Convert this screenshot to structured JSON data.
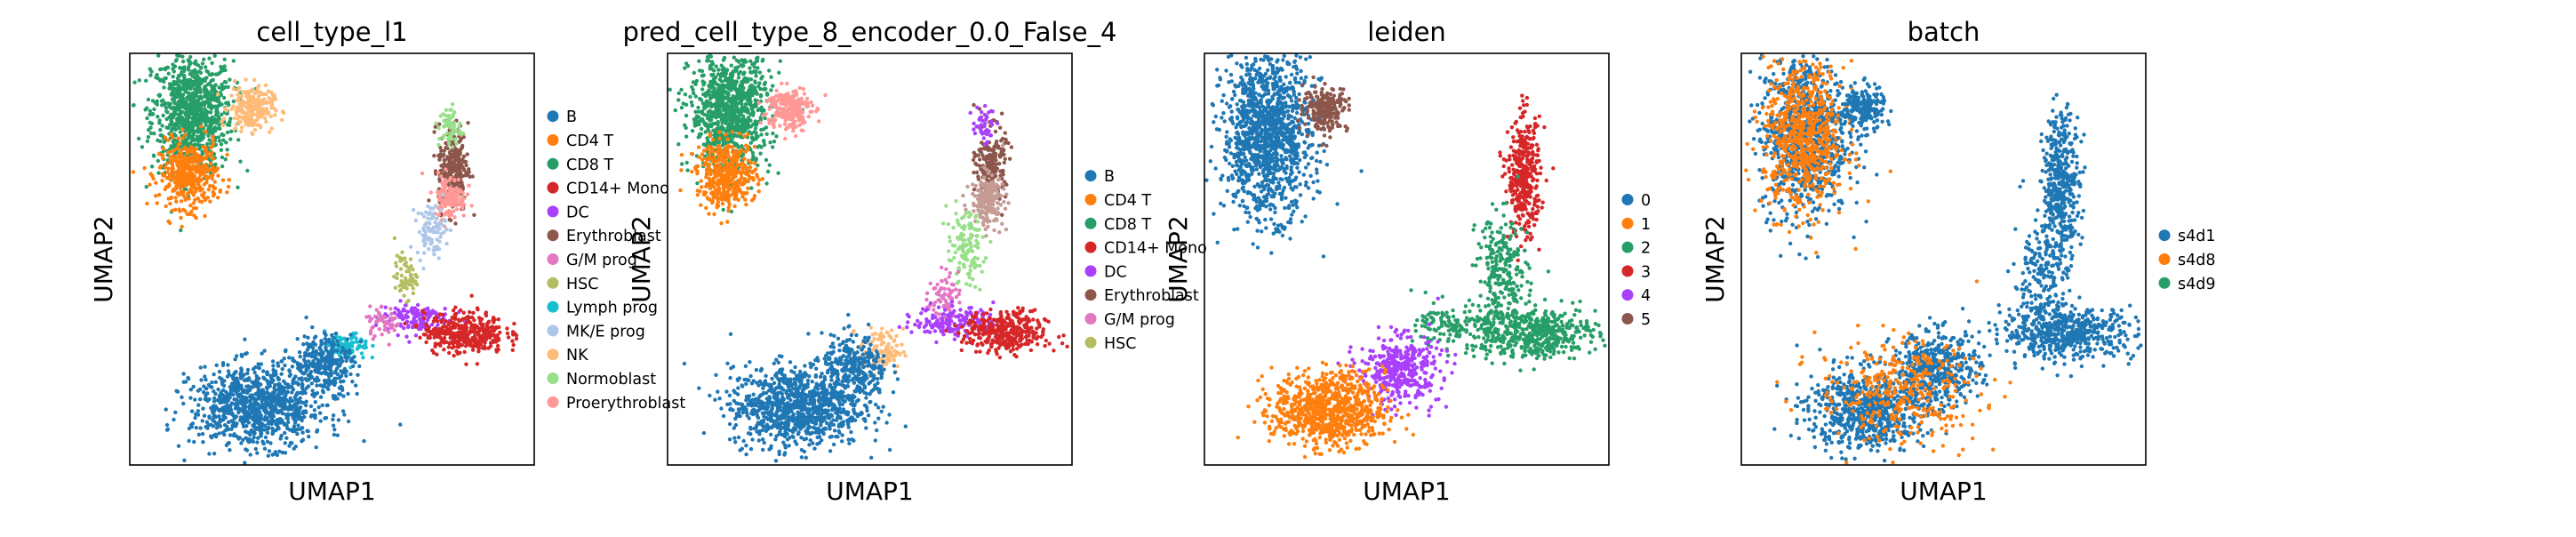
{
  "chart_data": [
    {
      "type": "scatter",
      "title": "cell_type_l1",
      "xlabel": "UMAP1",
      "ylabel": "UMAP2",
      "grid": false,
      "legend": "right",
      "legend_entries": [
        {
          "label": "B",
          "color": "#1f77b4"
        },
        {
          "label": "CD4 T",
          "color": "#ff7f0e"
        },
        {
          "label": "CD8 T",
          "color": "#279e68"
        },
        {
          "label": "CD14+ Mono",
          "color": "#d62728"
        },
        {
          "label": "DC",
          "color": "#aa40fc"
        },
        {
          "label": "Erythroblast",
          "color": "#8c564b"
        },
        {
          "label": "G/M prog",
          "color": "#e377c2"
        },
        {
          "label": "HSC",
          "color": "#b5bd61"
        },
        {
          "label": "Lymph prog",
          "color": "#17becf"
        },
        {
          "label": "MK/E prog",
          "color": "#aec7e8"
        },
        {
          "label": "NK",
          "color": "#ffbb78"
        },
        {
          "label": "Normoblast",
          "color": "#98df8a"
        },
        {
          "label": "Proerythroblast",
          "color": "#ff9896"
        }
      ],
      "clusters": [
        {
          "label": "CD8 T",
          "x": 1.2,
          "y": 9.0,
          "sx": 0.55,
          "sy": 0.8,
          "n": 900
        },
        {
          "label": "CD4 T",
          "x": 1.1,
          "y": 7.3,
          "sx": 0.4,
          "sy": 0.45,
          "n": 420
        },
        {
          "label": "NK",
          "x": 2.8,
          "y": 9.1,
          "sx": 0.3,
          "sy": 0.3,
          "n": 220
        },
        {
          "label": "Erythroblast",
          "x": 8.3,
          "y": 7.5,
          "sx": 0.2,
          "sy": 0.6,
          "n": 260
        },
        {
          "label": "Proerythroblast",
          "x": 8.2,
          "y": 6.7,
          "sx": 0.22,
          "sy": 0.3,
          "n": 130
        },
        {
          "label": "MK/E prog",
          "x": 7.7,
          "y": 5.8,
          "sx": 0.2,
          "sy": 0.35,
          "n": 90
        },
        {
          "label": "Normoblast",
          "x": 8.2,
          "y": 8.6,
          "sx": 0.15,
          "sy": 0.3,
          "n": 60
        },
        {
          "label": "HSC",
          "x": 7.0,
          "y": 4.5,
          "sx": 0.15,
          "sy": 0.3,
          "n": 60
        },
        {
          "label": "DC",
          "x": 7.2,
          "y": 3.4,
          "sx": 0.5,
          "sy": 0.22,
          "n": 130
        },
        {
          "label": "CD14+ Mono",
          "x": 8.6,
          "y": 3.0,
          "sx": 0.55,
          "sy": 0.28,
          "n": 380
        },
        {
          "label": "G/M prog",
          "x": 6.4,
          "y": 3.3,
          "sx": 0.25,
          "sy": 0.2,
          "n": 50
        },
        {
          "label": "Lymph prog",
          "x": 5.4,
          "y": 2.6,
          "sx": 0.3,
          "sy": 0.2,
          "n": 90
        },
        {
          "label": "B",
          "x": 3.0,
          "y": 1.0,
          "sx": 0.9,
          "sy": 0.55,
          "n": 950
        },
        {
          "label": "B",
          "x": 4.8,
          "y": 2.2,
          "sx": 0.4,
          "sy": 0.4,
          "n": 280
        }
      ]
    },
    {
      "type": "scatter",
      "title": "pred_cell_type_8_encoder_0.0_False_4",
      "xlabel": "UMAP1",
      "ylabel": "UMAP2",
      "grid": false,
      "legend": "right",
      "legend_entries": [
        {
          "label": "B",
          "color": "#1f77b4"
        },
        {
          "label": "CD4 T",
          "color": "#ff7f0e"
        },
        {
          "label": "CD8 T",
          "color": "#279e68"
        },
        {
          "label": "CD14+ Mono",
          "color": "#d62728"
        },
        {
          "label": "DC",
          "color": "#aa40fc"
        },
        {
          "label": "Erythroblast",
          "color": "#8c564b"
        },
        {
          "label": "G/M prog",
          "color": "#e377c2"
        },
        {
          "label": "HSC",
          "color": "#b5bd61"
        }
      ],
      "extra_colors": {
        "light_brown": "#c49c94",
        "light_green": "#98df8a",
        "light_red": "#ff9896",
        "peach": "#ffbb78"
      },
      "clusters": [
        {
          "label": "CD8 T",
          "x": 1.2,
          "y": 9.0,
          "sx": 0.55,
          "sy": 0.8,
          "n": 950
        },
        {
          "label": "CD4 T",
          "x": 1.1,
          "y": 7.3,
          "sx": 0.4,
          "sy": 0.45,
          "n": 420
        },
        {
          "label": "light_red",
          "x": 2.8,
          "y": 9.1,
          "sx": 0.3,
          "sy": 0.3,
          "n": 220
        },
        {
          "label": "Erythroblast",
          "x": 8.3,
          "y": 7.6,
          "sx": 0.2,
          "sy": 0.5,
          "n": 200
        },
        {
          "label": "light_brown",
          "x": 8.2,
          "y": 6.6,
          "sx": 0.22,
          "sy": 0.35,
          "n": 200
        },
        {
          "label": "light_green",
          "x": 7.6,
          "y": 5.3,
          "sx": 0.25,
          "sy": 0.5,
          "n": 120
        },
        {
          "label": "DC",
          "x": 8.1,
          "y": 8.7,
          "sx": 0.15,
          "sy": 0.25,
          "n": 40
        },
        {
          "label": "G/M prog",
          "x": 7.0,
          "y": 4.0,
          "sx": 0.2,
          "sy": 0.3,
          "n": 70
        },
        {
          "label": "DC",
          "x": 7.3,
          "y": 3.3,
          "sx": 0.55,
          "sy": 0.22,
          "n": 160
        },
        {
          "label": "CD14+ Mono",
          "x": 8.7,
          "y": 3.0,
          "sx": 0.55,
          "sy": 0.28,
          "n": 380
        },
        {
          "label": "peach",
          "x": 5.3,
          "y": 2.5,
          "sx": 0.3,
          "sy": 0.3,
          "n": 110
        },
        {
          "label": "B",
          "x": 3.0,
          "y": 1.0,
          "sx": 0.9,
          "sy": 0.55,
          "n": 950
        },
        {
          "label": "B",
          "x": 4.6,
          "y": 2.0,
          "sx": 0.45,
          "sy": 0.45,
          "n": 300
        }
      ]
    },
    {
      "type": "scatter",
      "title": "leiden",
      "xlabel": "UMAP1",
      "ylabel": "UMAP2",
      "grid": false,
      "legend": "right",
      "legend_entries": [
        {
          "label": "0",
          "color": "#1f77b4"
        },
        {
          "label": "1",
          "color": "#ff7f0e"
        },
        {
          "label": "2",
          "color": "#279e68"
        },
        {
          "label": "3",
          "color": "#d62728"
        },
        {
          "label": "4",
          "color": "#aa40fc"
        },
        {
          "label": "5",
          "color": "#8c564b"
        }
      ],
      "clusters": [
        {
          "label": "0",
          "x": 1.2,
          "y": 8.4,
          "sx": 0.6,
          "sy": 1.1,
          "n": 1300
        },
        {
          "label": "5",
          "x": 2.8,
          "y": 9.1,
          "sx": 0.3,
          "sy": 0.3,
          "n": 220
        },
        {
          "label": "3",
          "x": 8.2,
          "y": 7.2,
          "sx": 0.22,
          "sy": 0.8,
          "n": 380
        },
        {
          "label": "2",
          "x": 7.6,
          "y": 4.6,
          "sx": 0.35,
          "sy": 0.8,
          "n": 250
        },
        {
          "label": "2",
          "x": 8.4,
          "y": 3.0,
          "sx": 0.9,
          "sy": 0.35,
          "n": 500
        },
        {
          "label": "2",
          "x": 6.3,
          "y": 3.2,
          "sx": 0.5,
          "sy": 0.3,
          "n": 120
        },
        {
          "label": "4",
          "x": 4.8,
          "y": 2.0,
          "sx": 0.55,
          "sy": 0.45,
          "n": 400
        },
        {
          "label": "1",
          "x": 2.9,
          "y": 0.9,
          "sx": 0.75,
          "sy": 0.5,
          "n": 850
        }
      ]
    },
    {
      "type": "scatter",
      "title": "batch",
      "xlabel": "UMAP1",
      "ylabel": "UMAP2",
      "grid": false,
      "legend": "right",
      "legend_entries": [
        {
          "label": "s4d1",
          "color": "#1f77b4"
        },
        {
          "label": "s4d8",
          "color": "#ff7f0e"
        },
        {
          "label": "s4d9",
          "color": "#279e68"
        }
      ],
      "clusters": [
        {
          "label": "s4d1",
          "x": 1.2,
          "y": 8.4,
          "sx": 0.6,
          "sy": 1.1,
          "n": 900
        },
        {
          "label": "s4d8",
          "x": 1.2,
          "y": 8.3,
          "sx": 0.55,
          "sy": 1.0,
          "n": 700
        },
        {
          "label": "s4d1",
          "x": 2.8,
          "y": 9.1,
          "sx": 0.3,
          "sy": 0.3,
          "n": 220
        },
        {
          "label": "s4d1",
          "x": 8.2,
          "y": 7.0,
          "sx": 0.25,
          "sy": 1.0,
          "n": 420
        },
        {
          "label": "s4d1",
          "x": 7.6,
          "y": 4.4,
          "sx": 0.35,
          "sy": 0.9,
          "n": 200
        },
        {
          "label": "s4d1",
          "x": 8.4,
          "y": 3.0,
          "sx": 0.9,
          "sy": 0.35,
          "n": 520
        },
        {
          "label": "s4d1",
          "x": 4.8,
          "y": 2.0,
          "sx": 0.6,
          "sy": 0.5,
          "n": 450
        },
        {
          "label": "s4d1",
          "x": 2.9,
          "y": 0.9,
          "sx": 0.8,
          "sy": 0.55,
          "n": 700
        },
        {
          "label": "s4d8",
          "x": 3.8,
          "y": 1.4,
          "sx": 1.1,
          "sy": 0.7,
          "n": 350
        }
      ]
    }
  ]
}
